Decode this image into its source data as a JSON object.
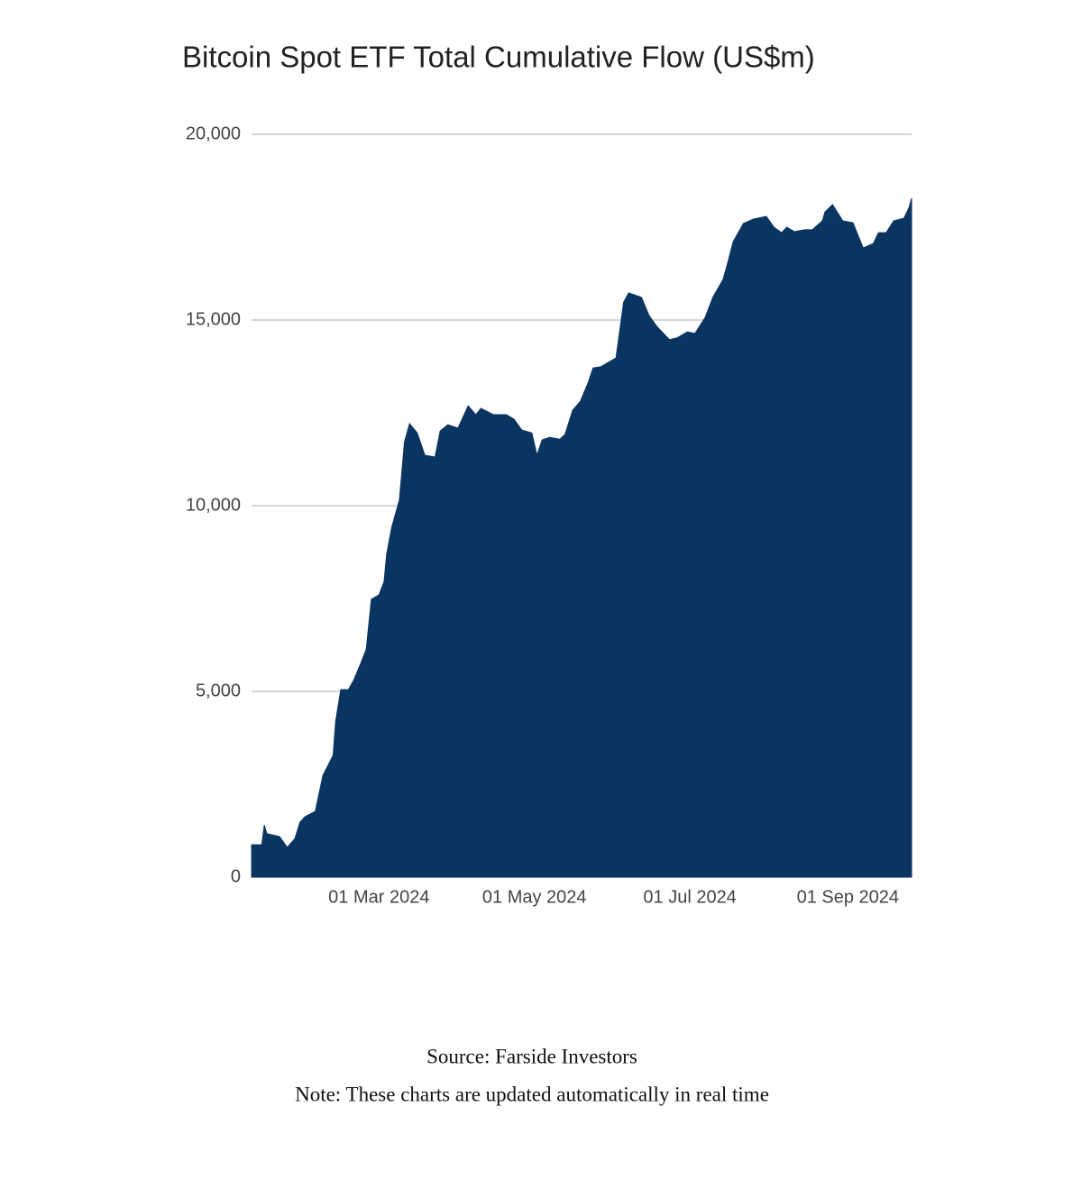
{
  "chart_data": {
    "type": "area",
    "title": "Bitcoin Spot ETF Total Cumulative Flow (US$m)",
    "x": [
      "2024-01-11",
      "2024-01-15",
      "2024-01-16",
      "2024-01-17",
      "2024-01-22",
      "2024-01-25",
      "2024-01-28",
      "2024-01-30",
      "2024-02-01",
      "2024-02-05",
      "2024-02-08",
      "2024-02-12",
      "2024-02-13",
      "2024-02-15",
      "2024-02-18",
      "2024-02-20",
      "2024-02-23",
      "2024-02-25",
      "2024-02-27",
      "2024-03-01",
      "2024-03-03",
      "2024-03-04",
      "2024-03-06",
      "2024-03-09",
      "2024-03-11",
      "2024-03-13",
      "2024-03-16",
      "2024-03-19",
      "2024-03-23",
      "2024-03-25",
      "2024-03-28",
      "2024-04-01",
      "2024-04-05",
      "2024-04-08",
      "2024-04-10",
      "2024-04-15",
      "2024-04-20",
      "2024-04-23",
      "2024-04-26",
      "2024-04-30",
      "2024-05-02",
      "2024-05-04",
      "2024-05-07",
      "2024-05-11",
      "2024-05-13",
      "2024-05-16",
      "2024-05-19",
      "2024-05-22",
      "2024-05-24",
      "2024-05-27",
      "2024-06-02",
      "2024-06-05",
      "2024-06-07",
      "2024-06-12",
      "2024-06-15",
      "2024-06-18",
      "2024-06-23",
      "2024-06-26",
      "2024-06-30",
      "2024-07-03",
      "2024-07-07",
      "2024-07-10",
      "2024-07-14",
      "2024-07-16",
      "2024-07-18",
      "2024-07-22",
      "2024-07-26",
      "2024-07-31",
      "2024-08-03",
      "2024-08-06",
      "2024-08-08",
      "2024-08-11",
      "2024-08-15",
      "2024-08-18",
      "2024-08-22",
      "2024-08-23",
      "2024-08-26",
      "2024-08-30",
      "2024-09-03",
      "2024-09-07",
      "2024-09-11",
      "2024-09-13",
      "2024-09-16",
      "2024-09-19",
      "2024-09-23",
      "2024-09-25",
      "2024-09-26"
    ],
    "series": [
      {
        "name": "Total Cumulative Flow",
        "color": "#0a3561",
        "values": [
          870,
          870,
          1400,
          1170,
          1090,
          800,
          1040,
          1480,
          1630,
          1770,
          2740,
          3280,
          4200,
          5050,
          5050,
          5290,
          5780,
          6140,
          7480,
          7600,
          7960,
          8690,
          9420,
          10150,
          11720,
          12210,
          11960,
          11360,
          11310,
          12010,
          12180,
          12090,
          12690,
          12450,
          12620,
          12450,
          12450,
          12330,
          12040,
          11960,
          11360,
          11770,
          11840,
          11790,
          11920,
          12570,
          12810,
          13300,
          13710,
          13740,
          13980,
          15480,
          15730,
          15610,
          15120,
          14830,
          14470,
          14520,
          14680,
          14640,
          15070,
          15610,
          16090,
          16580,
          17110,
          17600,
          17720,
          17790,
          17500,
          17350,
          17500,
          17380,
          17430,
          17430,
          17670,
          17910,
          18110,
          17670,
          17620,
          16940,
          17060,
          17350,
          17350,
          17670,
          17740,
          18030,
          18280
        ]
      }
    ],
    "xlim": [
      "2024-01-11",
      "2024-09-26"
    ],
    "xticks": [
      {
        "value": "2024-03-01",
        "label": "01 Mar 2024"
      },
      {
        "value": "2024-05-01",
        "label": "01 May 2024"
      },
      {
        "value": "2024-07-01",
        "label": "01 Jul 2024"
      },
      {
        "value": "2024-09-01",
        "label": "01 Sep 2024"
      }
    ],
    "ylim": [
      0,
      20000
    ],
    "yticks": [
      0,
      {
        "value": 5000,
        "label": "5,000"
      },
      {
        "value": 10000,
        "label": "10,000"
      },
      {
        "value": 15000,
        "label": "15,000"
      },
      {
        "value": 20000,
        "label": "20,000"
      }
    ],
    "grid": true
  },
  "footer": {
    "source": "Source: Farside Investors",
    "note": "Note: These charts are updated automatically in real time"
  }
}
